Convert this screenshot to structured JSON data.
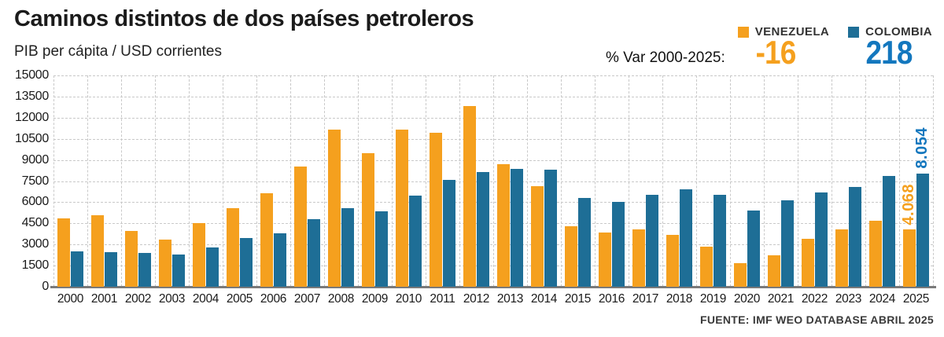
{
  "header": {
    "title": "Caminos distintos de dos países petroleros",
    "subtitle": "PIB per cápita / USD corrientes"
  },
  "legend": {
    "items": [
      {
        "label": "VENEZUELA",
        "color": "#F5A01E"
      },
      {
        "label": "COLOMBIA",
        "color": "#1E6E96"
      }
    ]
  },
  "var_summary": {
    "label": "% Var 2000-2025:",
    "venezuela_value": "-16",
    "colombia_value": "218",
    "venezuela_color": "#F5A01E",
    "colombia_color": "#1377BE"
  },
  "chart_data": {
    "type": "bar",
    "title": "Caminos distintos de dos países petroleros",
    "subtitle": "PIB per cápita / USD corrientes",
    "categories": [
      "2000",
      "2001",
      "2002",
      "2003",
      "2004",
      "2005",
      "2006",
      "2007",
      "2008",
      "2009",
      "2010",
      "2011",
      "2012",
      "2013",
      "2014",
      "2015",
      "2016",
      "2017",
      "2018",
      "2019",
      "2020",
      "2021",
      "2022",
      "2023",
      "2024",
      "2025"
    ],
    "series": [
      {
        "name": "VENEZUELA",
        "color": "#F5A01E",
        "values": [
          4850,
          5050,
          3950,
          3350,
          4500,
          5550,
          6650,
          8550,
          11150,
          9500,
          11150,
          10950,
          12800,
          8700,
          7150,
          4300,
          3850,
          4050,
          3700,
          2850,
          1650,
          2250,
          3400,
          4050,
          4700,
          4068
        ]
      },
      {
        "name": "COLOMBIA",
        "color": "#1E6E96",
        "values": [
          2530,
          2460,
          2420,
          2290,
          2800,
          3450,
          3800,
          4800,
          5600,
          5350,
          6450,
          7600,
          8150,
          8350,
          8300,
          6300,
          6000,
          6500,
          6900,
          6500,
          5400,
          6150,
          6700,
          7100,
          7850,
          8054
        ]
      }
    ],
    "ylabel": "PIB per cápita / USD corrientes",
    "ylim": [
      0,
      15000
    ],
    "yticks": [
      0,
      1500,
      3000,
      4500,
      6000,
      7500,
      9000,
      10500,
      12000,
      13500,
      15000
    ],
    "grid": true,
    "legend_position": "top-right",
    "annotations": [
      {
        "series": "VENEZUELA",
        "category": "2025",
        "text": "4.068",
        "color": "#F5A01E"
      },
      {
        "series": "COLOMBIA",
        "category": "2025",
        "text": "8.054",
        "color": "#1377BE"
      }
    ]
  },
  "source": "FUENTE: IMF WEO DATABASE ABRIL 2025"
}
